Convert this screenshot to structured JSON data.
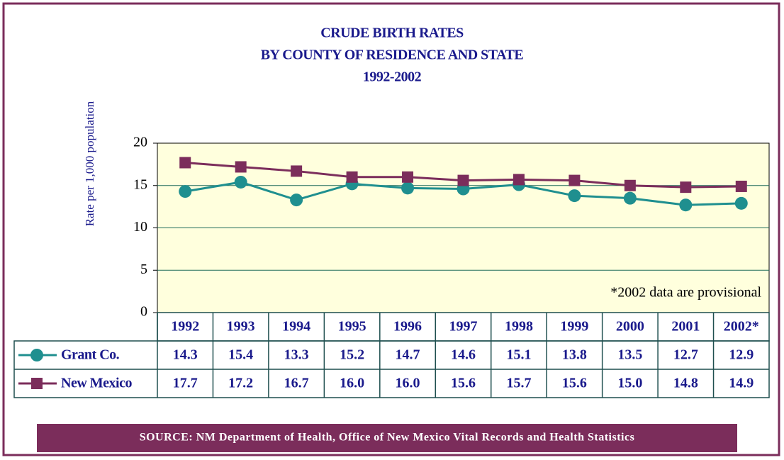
{
  "chart_data": {
    "type": "line",
    "title": [
      "CRUDE BIRTH RATES",
      "BY COUNTY OF RESIDENCE AND STATE",
      "1992-2002"
    ],
    "ylabel": "Rate per 1,000 population",
    "annotation": "*2002 data are provisional",
    "source": "SOURCE: NM Department of  Health, Office of New Mexico Vital Records and Health Statistics",
    "categories": [
      "1992",
      "1993",
      "1994",
      "1995",
      "1996",
      "1997",
      "1998",
      "1999",
      "2000",
      "2001",
      "2002*"
    ],
    "series": [
      {
        "name": "Grant Co.",
        "color": "#1f8f8f",
        "marker": "circle",
        "values": [
          14.3,
          15.4,
          13.3,
          15.2,
          14.7,
          14.6,
          15.1,
          13.8,
          13.5,
          12.7,
          12.9
        ],
        "value_labels": [
          "14.3",
          "15.4",
          "13.3",
          "15.2",
          "14.7",
          "14.6",
          "15.1",
          "13.8",
          "13.5",
          "12.7",
          "12.9"
        ]
      },
      {
        "name": "New Mexico",
        "color": "#7b2d5b",
        "marker": "square",
        "values": [
          17.7,
          17.2,
          16.7,
          16.0,
          16.0,
          15.6,
          15.7,
          15.6,
          15.0,
          14.8,
          14.9
        ],
        "value_labels": [
          "17.7",
          "17.2",
          "16.7",
          "16.0",
          "16.0",
          "15.6",
          "15.7",
          "15.6",
          "15.0",
          "14.8",
          "14.9"
        ]
      }
    ],
    "ylim": [
      0,
      20
    ],
    "yticks": [
      0,
      5,
      10,
      15,
      20
    ],
    "grid": true
  }
}
